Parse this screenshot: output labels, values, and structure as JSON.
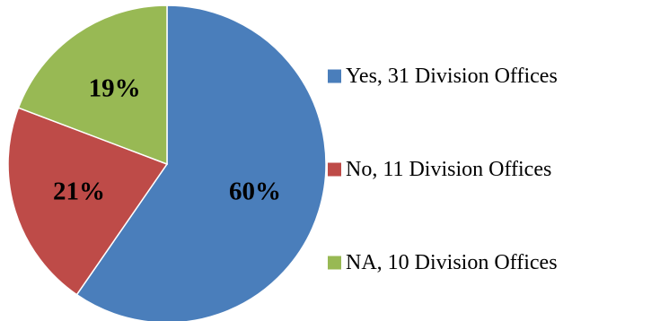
{
  "chart_data": {
    "type": "pie",
    "title": "",
    "legend_position": "right",
    "slices": [
      {
        "label": "Yes, 31 Division Offices",
        "value": 31,
        "percent_label": "60%",
        "color": "#4a7ebb"
      },
      {
        "label": "No, 11 Division Offices",
        "value": 11,
        "percent_label": "21%",
        "color": "#be4b48"
      },
      {
        "label": "NA, 10 Division Offices",
        "value": 10,
        "percent_label": "19%",
        "color": "#98b954"
      }
    ]
  }
}
